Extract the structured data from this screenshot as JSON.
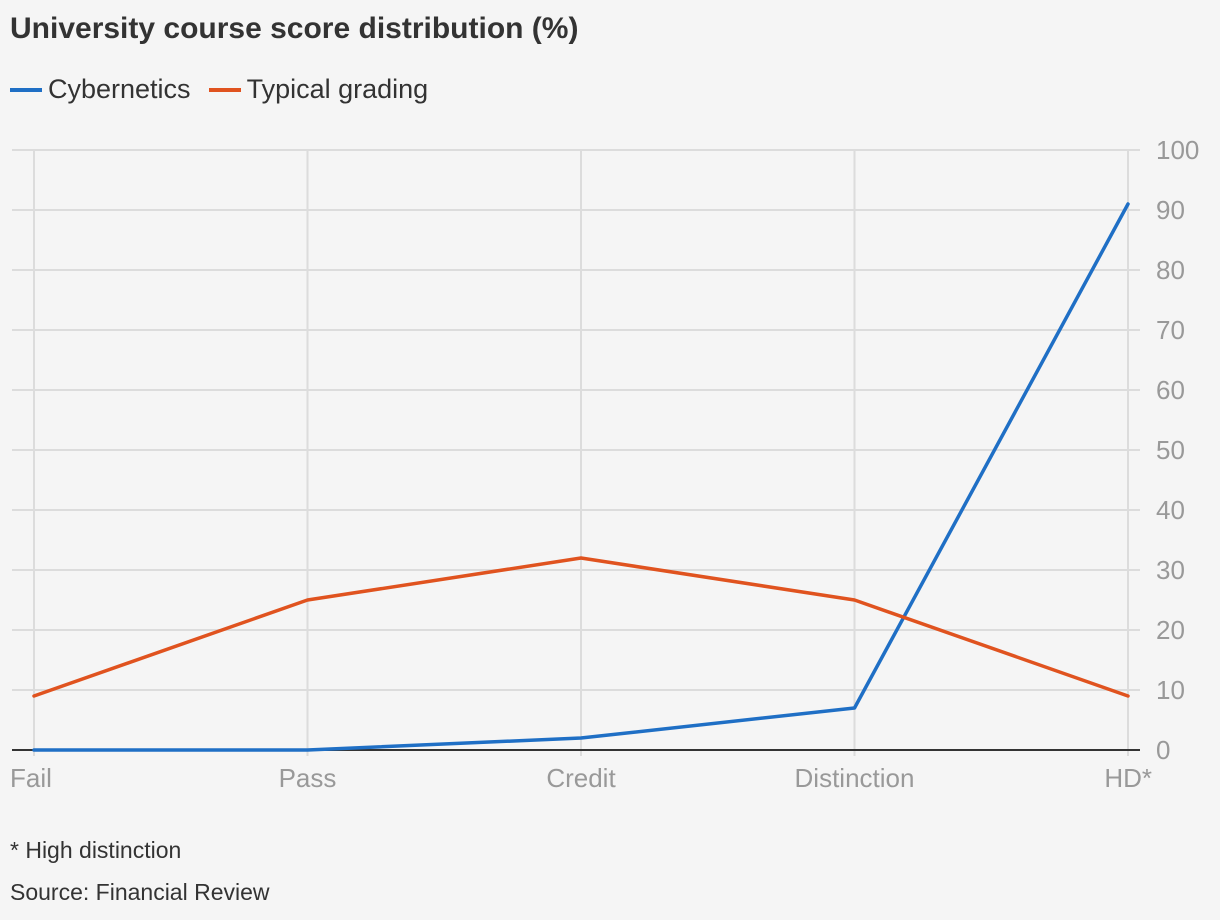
{
  "chart_data": {
    "type": "line",
    "title": "University course score distribution (%)",
    "categories": [
      "Fail",
      "Pass",
      "Credit",
      "Distinction",
      "HD*"
    ],
    "series": [
      {
        "name": "Cybernetics",
        "color": "#1f6fc5",
        "values": [
          0,
          0,
          2,
          7,
          91
        ]
      },
      {
        "name": "Typical grading",
        "color": "#e0531f",
        "values": [
          9,
          25,
          32,
          25,
          9
        ]
      }
    ],
    "ylim": [
      0,
      100
    ],
    "yticks": [
      "0",
      "10",
      "20",
      "30",
      "40",
      "50",
      "60",
      "70",
      "80",
      "90",
      "100"
    ],
    "y_axis_side": "right",
    "grid": true,
    "legend_position": "top-left"
  },
  "footnote": "* High distinction",
  "source": "Source: Financial Review"
}
